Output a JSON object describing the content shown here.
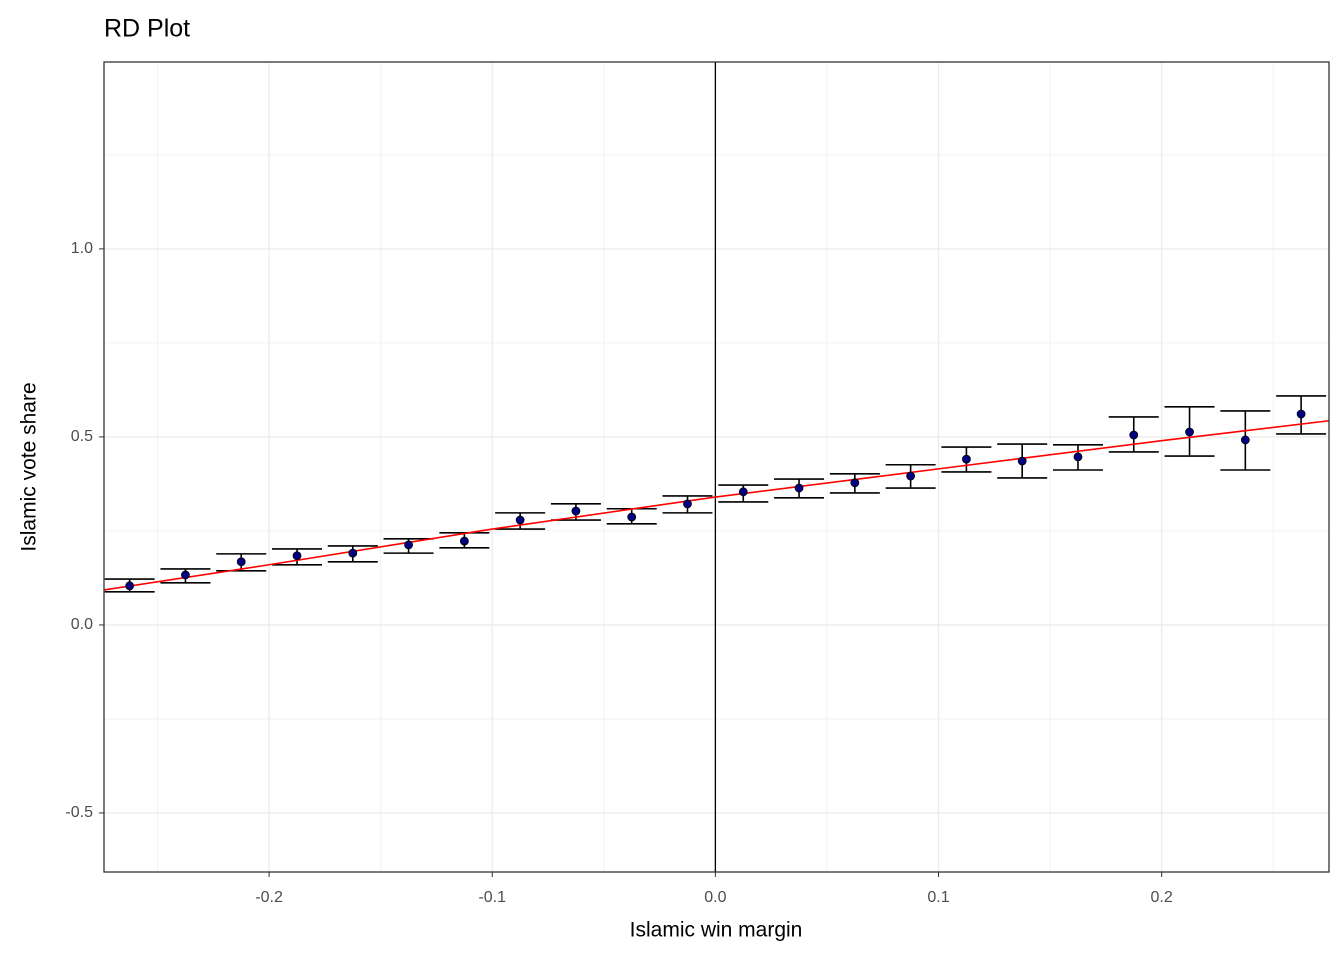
{
  "chart_data": {
    "type": "scatter",
    "title": "RD Plot",
    "x_label": "Islamic win margin",
    "y_label": "Islamic vote share",
    "xlim": [
      -0.274,
      0.275
    ],
    "ylim": [
      -0.657,
      1.497
    ],
    "xticks": [
      -0.2,
      -0.1,
      {
        "value": 0,
        "label": "0.0"
      },
      0.1,
      0.2
    ],
    "yticks": [
      -0.5,
      {
        "value": 0,
        "label": "0.0"
      },
      0.5,
      {
        "value": 1,
        "label": "1.0"
      }
    ],
    "grid": true,
    "cutoff": 0,
    "series": [
      {
        "color": "#000080",
        "x": [
          -0.2625,
          -0.2375,
          -0.2125,
          -0.1875,
          -0.1625,
          -0.1375,
          -0.1125,
          -0.0875,
          -0.0625,
          -0.0375,
          -0.0125,
          0.0125,
          0.0375,
          0.0625,
          0.0875,
          0.1125,
          0.1375,
          0.1625,
          0.1875,
          0.2125,
          0.2375,
          0.2625
        ],
        "values": [
          0.104,
          0.133,
          0.168,
          0.184,
          0.191,
          0.213,
          0.223,
          0.279,
          0.303,
          0.287,
          0.322,
          0.354,
          0.364,
          0.378,
          0.396,
          0.441,
          0.436,
          0.447,
          0.505,
          0.513,
          0.492,
          0.561
        ],
        "lower": [
          0.088,
          0.112,
          0.144,
          0.16,
          0.168,
          0.191,
          0.205,
          0.255,
          0.279,
          0.269,
          0.298,
          0.327,
          0.338,
          0.351,
          0.364,
          0.407,
          0.391,
          0.412,
          0.46,
          0.449,
          0.412,
          0.508
        ],
        "upper": [
          0.122,
          0.149,
          0.189,
          0.202,
          0.21,
          0.229,
          0.245,
          0.298,
          0.322,
          0.309,
          0.343,
          0.372,
          0.388,
          0.402,
          0.426,
          0.473,
          0.481,
          0.479,
          0.553,
          0.58,
          0.569,
          0.609
        ]
      }
    ],
    "fit": [
      {
        "color": "#ff0000",
        "x": [
          -0.274,
          -0.2,
          -0.1,
          0
        ],
        "values": [
          0.093,
          0.16,
          0.255,
          0.34
        ]
      },
      {
        "color": "#ff0000",
        "x": [
          0,
          0.1,
          0.2,
          0.275
        ],
        "values": [
          0.34,
          0.415,
          0.49,
          0.543
        ]
      }
    ]
  }
}
